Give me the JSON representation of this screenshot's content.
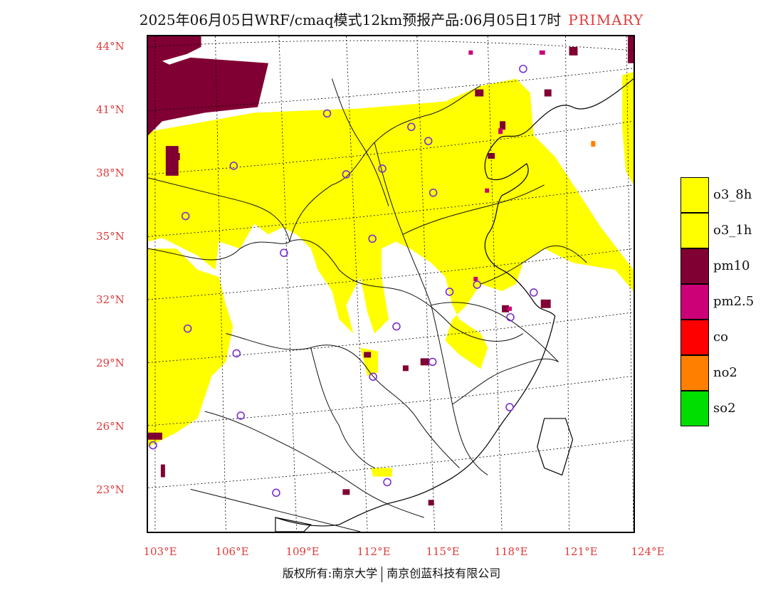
{
  "title": {
    "text": "2025年06月05日WRF/cmaq模式12km预报产品:06月05日17时",
    "tag": "PRIMARY"
  },
  "axes": {
    "lat_labels": [
      "44°N",
      "41°N",
      "38°N",
      "35°N",
      "32°N",
      "29°N",
      "26°N",
      "23°N"
    ],
    "lon_labels": [
      "103°E",
      "106°E",
      "109°E",
      "112°E",
      "115°E",
      "118°E",
      "121°E",
      "124°E"
    ]
  },
  "legend": [
    {
      "label": "o3_8h",
      "color": "#ffff00"
    },
    {
      "label": "o3_1h",
      "color": "#ffff00"
    },
    {
      "label": "pm10",
      "color": "#800033"
    },
    {
      "label": "pm2.5",
      "color": "#cc0077"
    },
    {
      "label": "co",
      "color": "#ff0000"
    },
    {
      "label": "no2",
      "color": "#ff7f00"
    },
    {
      "label": "so2",
      "color": "#00dd00"
    }
  ],
  "credit": {
    "left": "版权所有:南京大学",
    "right": "南京创蓝科技有限公司"
  },
  "colors": {
    "o3": "#ffff00",
    "pm10": "#800033",
    "pm25": "#cc0077",
    "station": "#7b2fcf",
    "axis_label": "#e03a3a"
  }
}
